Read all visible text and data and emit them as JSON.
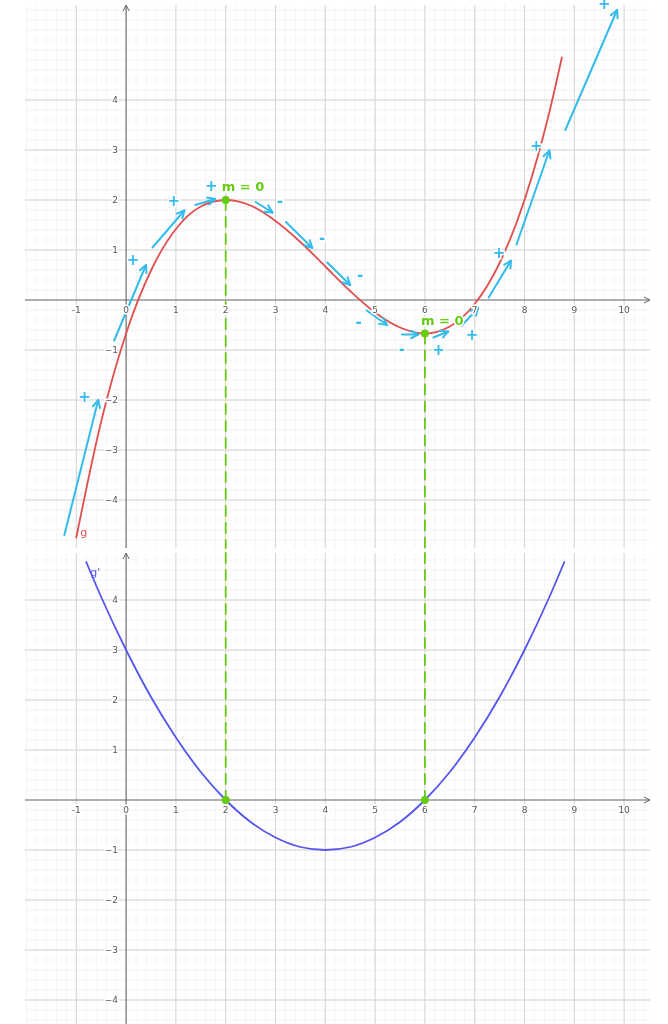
{
  "chart_data": [
    {
      "type": "line",
      "xlim": [
        -2.03,
        10.52
      ],
      "ylim": [
        -4.96,
        5.9
      ],
      "xticks": [
        -1,
        0,
        1,
        2,
        3,
        4,
        5,
        6,
        7,
        8,
        9,
        10
      ],
      "yticks": [
        -4,
        -3,
        -2,
        -1,
        1,
        2,
        3,
        4
      ],
      "grid": true,
      "x": [
        -1,
        -0.5,
        0,
        0.5,
        1,
        1.5,
        2,
        2.5,
        3,
        3.5,
        4,
        4.5,
        5,
        5.5,
        6,
        6.5,
        7,
        7.5,
        8,
        8.5,
        8.75
      ],
      "series": [
        {
          "name": "g",
          "color": "#e05050",
          "values": [
            -4.75,
            -2.43,
            -0.67,
            0.59,
            1.42,
            1.87,
            2,
            1.89,
            1.58,
            1.16,
            0.67,
            0.18,
            -0.25,
            -0.55,
            -0.67,
            -0.53,
            -0.08,
            0.74,
            2,
            3.76,
            4.85
          ]
        },
        {
          "color": "#66cc11",
          "line_style": "dashed",
          "x": [
            2,
            2
          ],
          "values": [
            2,
            -4.96
          ]
        },
        {
          "color": "#66cc11",
          "line_style": "dashed",
          "x": [
            6,
            6
          ],
          "values": [
            -0.67,
            -4.96
          ]
        },
        {
          "type": "scatter",
          "color": "#66cc11",
          "marker": "circle",
          "x": [
            2,
            6
          ],
          "values": [
            2,
            -0.67
          ]
        },
        {
          "color": "#33bbee",
          "x": [
            -1.24,
            -0.56
          ],
          "values": [
            -4.7,
            -2.0
          ],
          "value_labels": [
            null,
            "+"
          ]
        },
        {
          "color": "#33bbee",
          "x": [
            -0.24,
            0.4
          ],
          "values": [
            -0.81,
            0.7
          ],
          "value_labels": [
            null,
            "+"
          ]
        },
        {
          "color": "#33bbee",
          "x": [
            0.53,
            1.17
          ],
          "values": [
            1.05,
            1.79
          ],
          "value_labels": [
            null,
            "+"
          ]
        },
        {
          "color": "#33bbee",
          "x": [
            1.39,
            1.79
          ],
          "values": [
            1.9,
            2.02
          ],
          "value_labels": [
            null,
            "+"
          ]
        },
        {
          "color": "#33bbee",
          "x": [
            2.6,
            2.94
          ],
          "values": [
            1.96,
            1.75
          ],
          "value_labels": [
            null,
            "-"
          ]
        },
        {
          "color": "#33bbee",
          "x": [
            3.21,
            3.74
          ],
          "values": [
            1.56,
            1.04
          ],
          "value_labels": [
            null,
            "-"
          ]
        },
        {
          "color": "#33bbee",
          "x": [
            4.04,
            4.5
          ],
          "values": [
            0.75,
            0.3
          ],
          "value_labels": [
            null,
            "-"
          ]
        },
        {
          "color": "#33bbee",
          "x": [
            4.83,
            5.24
          ],
          "values": [
            -0.21,
            -0.5
          ],
          "value_labels": [
            "-",
            null
          ]
        },
        {
          "color": "#33bbee",
          "x": [
            5.54,
            5.87
          ],
          "values": [
            -0.69,
            -0.69
          ],
          "value_labels": [
            "-",
            null
          ]
        },
        {
          "color": "#33bbee",
          "x": [
            6.17,
            6.47
          ],
          "values": [
            -0.75,
            -0.63
          ],
          "value_labels": [
            "+",
            null
          ]
        },
        {
          "color": "#33bbee",
          "x": [
            6.74,
            7.07
          ],
          "values": [
            -0.51,
            -0.16
          ],
          "value_labels": [
            "+",
            null
          ]
        },
        {
          "color": "#33bbee",
          "x": [
            7.28,
            7.73
          ],
          "values": [
            0.05,
            0.79
          ],
          "value_labels": [
            null,
            "+"
          ]
        },
        {
          "color": "#33bbee",
          "x": [
            7.84,
            8.5
          ],
          "values": [
            1.11,
            2.99
          ],
          "value_labels": [
            null,
            "+"
          ]
        },
        {
          "color": "#33bbee",
          "x": [
            8.82,
            9.86
          ],
          "values": [
            3.4,
            5.8
          ],
          "value_labels": [
            null,
            "+"
          ]
        }
      ],
      "annotations": [
        {
          "text": "m = 0",
          "x": 2,
          "y": 2
        },
        {
          "text": "m = 0",
          "x": 6,
          "y": -0.67
        }
      ]
    },
    {
      "type": "line",
      "xlim": [
        -2.03,
        10.52
      ],
      "ylim": [
        -4.48,
        4.94
      ],
      "xticks": [
        -1,
        0,
        1,
        2,
        3,
        4,
        5,
        6,
        7,
        8,
        9,
        10
      ],
      "yticks": [
        -4,
        -3,
        -2,
        -1,
        1,
        2,
        3,
        4
      ],
      "grid": true,
      "x": [
        -0.8,
        -0.5,
        0,
        0.5,
        1,
        1.5,
        2,
        2.5,
        3,
        3.5,
        4,
        4.5,
        5,
        5.5,
        6,
        6.5,
        7,
        7.5,
        8,
        8.5,
        8.8
      ],
      "series": [
        {
          "name": "g'",
          "color": "#5555ee",
          "values": [
            4.76,
            4.06,
            3,
            2.06,
            1.25,
            0.56,
            0,
            -0.44,
            -0.75,
            -0.94,
            -1,
            -0.94,
            -0.75,
            -0.44,
            0,
            0.56,
            1.25,
            2.06,
            3,
            4.06,
            4.76
          ]
        },
        {
          "color": "#66cc11",
          "line_style": "dashed",
          "x": [
            2,
            2
          ],
          "values": [
            4.94,
            0
          ]
        },
        {
          "color": "#66cc11",
          "line_style": "dashed",
          "x": [
            6,
            6
          ],
          "values": [
            4.94,
            0
          ]
        },
        {
          "type": "scatter",
          "color": "#66cc11",
          "marker": "circle",
          "x": [
            2,
            6
          ],
          "values": [
            0,
            0
          ]
        }
      ]
    }
  ]
}
